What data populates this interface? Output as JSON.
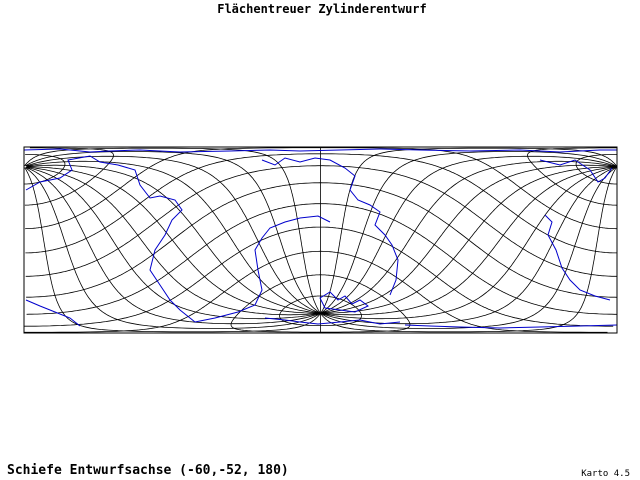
{
  "title": "Flächentreuer Zylinderentwurf",
  "caption": "Schiefe Entwurfsachse (-60,-52, 180)",
  "version": "Karto 4.5"
}
